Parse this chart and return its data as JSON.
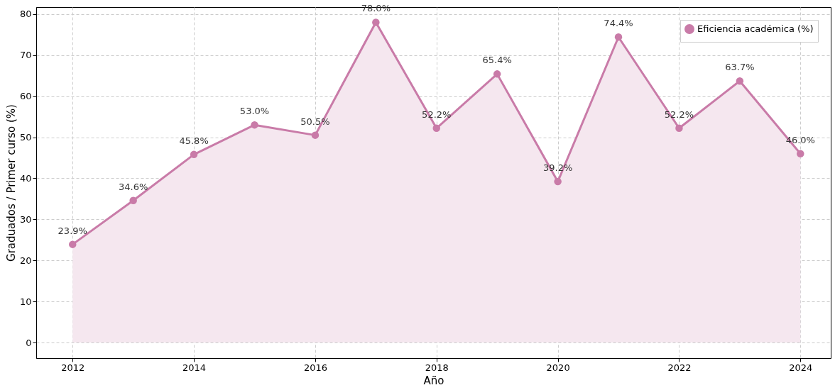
{
  "chart_data": {
    "type": "area",
    "xlabel": "Año",
    "ylabel": "Graduados / Primer curso (%)",
    "x": [
      2012,
      2013,
      2014,
      2015,
      2016,
      2017,
      2018,
      2019,
      2020,
      2021,
      2022,
      2023,
      2024
    ],
    "series": [
      {
        "name": "Eficiencia académica (%)",
        "color": "#c97ba8",
        "values": [
          23.9,
          34.6,
          45.8,
          53.0,
          50.5,
          78.0,
          52.2,
          65.4,
          39.2,
          74.4,
          52.2,
          63.7,
          46.0
        ],
        "value_labels": [
          "23.9%",
          "34.6%",
          "45.8%",
          "53.0%",
          "50.5%",
          "78.0%",
          "52.2%",
          "65.4%",
          "39.2%",
          "74.4%",
          "52.2%",
          "63.7%",
          "46.0%"
        ]
      }
    ],
    "xlim": [
      2011.4,
      2024.5
    ],
    "xticks": [
      2012,
      2014,
      2016,
      2018,
      2020,
      2022,
      2024
    ],
    "ylim": [
      -3.8,
      81.7
    ],
    "yticks": [
      0,
      10,
      20,
      30,
      40,
      50,
      60,
      70,
      80
    ],
    "grid": true,
    "legend": "top right",
    "marker": "circle",
    "line_style": "solid"
  }
}
